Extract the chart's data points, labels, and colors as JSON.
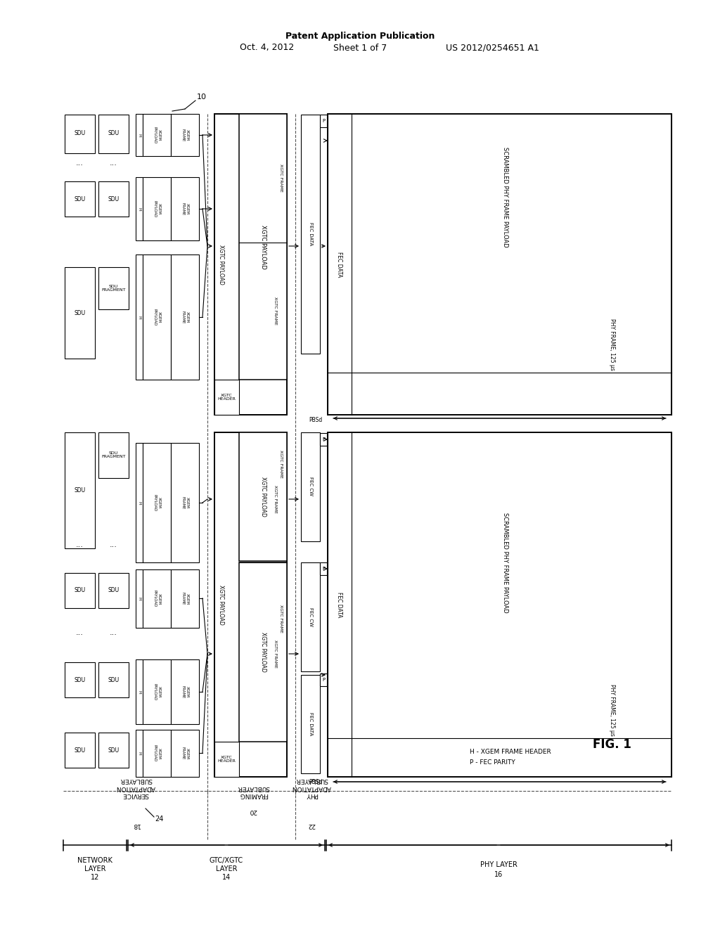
{
  "bg_color": "#ffffff",
  "header_pub": "Patent Application Publication",
  "header_date": "Oct. 4, 2012",
  "header_sheet": "Sheet 1 of 7",
  "header_patent": "US 2012/0254651 A1",
  "fig_label": "FIG. 1",
  "fig_num": "10",
  "ref_24": "24",
  "ref_18": "18",
  "ref_20": "20",
  "ref_22": "22",
  "ref_12": "12",
  "ref_14": "14",
  "ref_16": "16",
  "legend1": "H - XGEM FRAME HEADER",
  "legend2": "P - FEC PARITY",
  "pbsd": "PBSd"
}
